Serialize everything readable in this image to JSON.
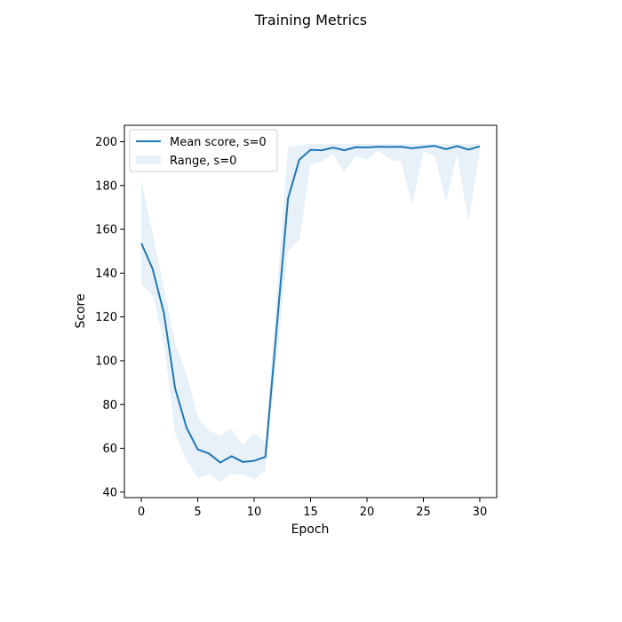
{
  "chart_data": {
    "type": "line",
    "title": "Training Metrics",
    "xlabel": "Epoch",
    "ylabel": "Score",
    "xlim": [
      -1.5,
      31.5
    ],
    "ylim": [
      37.5,
      207.5
    ],
    "xticks": [
      0,
      5,
      10,
      15,
      20,
      25,
      30
    ],
    "yticks": [
      40,
      60,
      80,
      100,
      120,
      140,
      160,
      180,
      200
    ],
    "grid": false,
    "legend_position": "top-left",
    "x": [
      0,
      1,
      2,
      3,
      4,
      5,
      6,
      7,
      8,
      9,
      10,
      11,
      12,
      13,
      14,
      15,
      16,
      17,
      18,
      19,
      20,
      21,
      22,
      23,
      24,
      25,
      26,
      27,
      28,
      29,
      30
    ],
    "series": [
      {
        "name": "Mean score, s=0",
        "kind": "line",
        "color": "#1f77b4",
        "values": [
          153.7,
          141.9,
          121.8,
          87.3,
          69.5,
          59.5,
          57.6,
          53.5,
          56.4,
          53.8,
          54.3,
          56.1,
          115.0,
          174.0,
          191.8,
          196.3,
          196.1,
          197.3,
          196.1,
          197.5,
          197.4,
          197.7,
          197.6,
          197.7,
          197.0,
          197.6,
          198.1,
          196.6,
          198.0,
          196.4,
          197.9
        ]
      },
      {
        "name": "Range, s=0",
        "kind": "band",
        "color": "#1f77b4",
        "fill_opacity": 0.1,
        "lower": [
          134.7,
          130.0,
          108.0,
          66.5,
          54.4,
          46.5,
          48.0,
          44.6,
          48.2,
          48.0,
          45.9,
          49.9,
          101.0,
          150.0,
          155.0,
          189.5,
          191.0,
          194.0,
          186.0,
          193.5,
          192.0,
          196.0,
          192.0,
          191.0,
          171.0,
          195.5,
          193.5,
          173.0,
          194.0,
          163.5,
          195.5
        ],
        "upper": [
          183.0,
          158.0,
          133.5,
          108.0,
          94.0,
          74.6,
          68.0,
          66.0,
          69.0,
          61.5,
          67.0,
          62.7,
          130.0,
          197.5,
          198.5,
          199.0,
          199.0,
          199.0,
          199.0,
          199.0,
          199.0,
          199.0,
          199.0,
          199.0,
          199.0,
          199.0,
          199.0,
          199.0,
          199.0,
          199.0,
          199.0
        ]
      }
    ]
  }
}
